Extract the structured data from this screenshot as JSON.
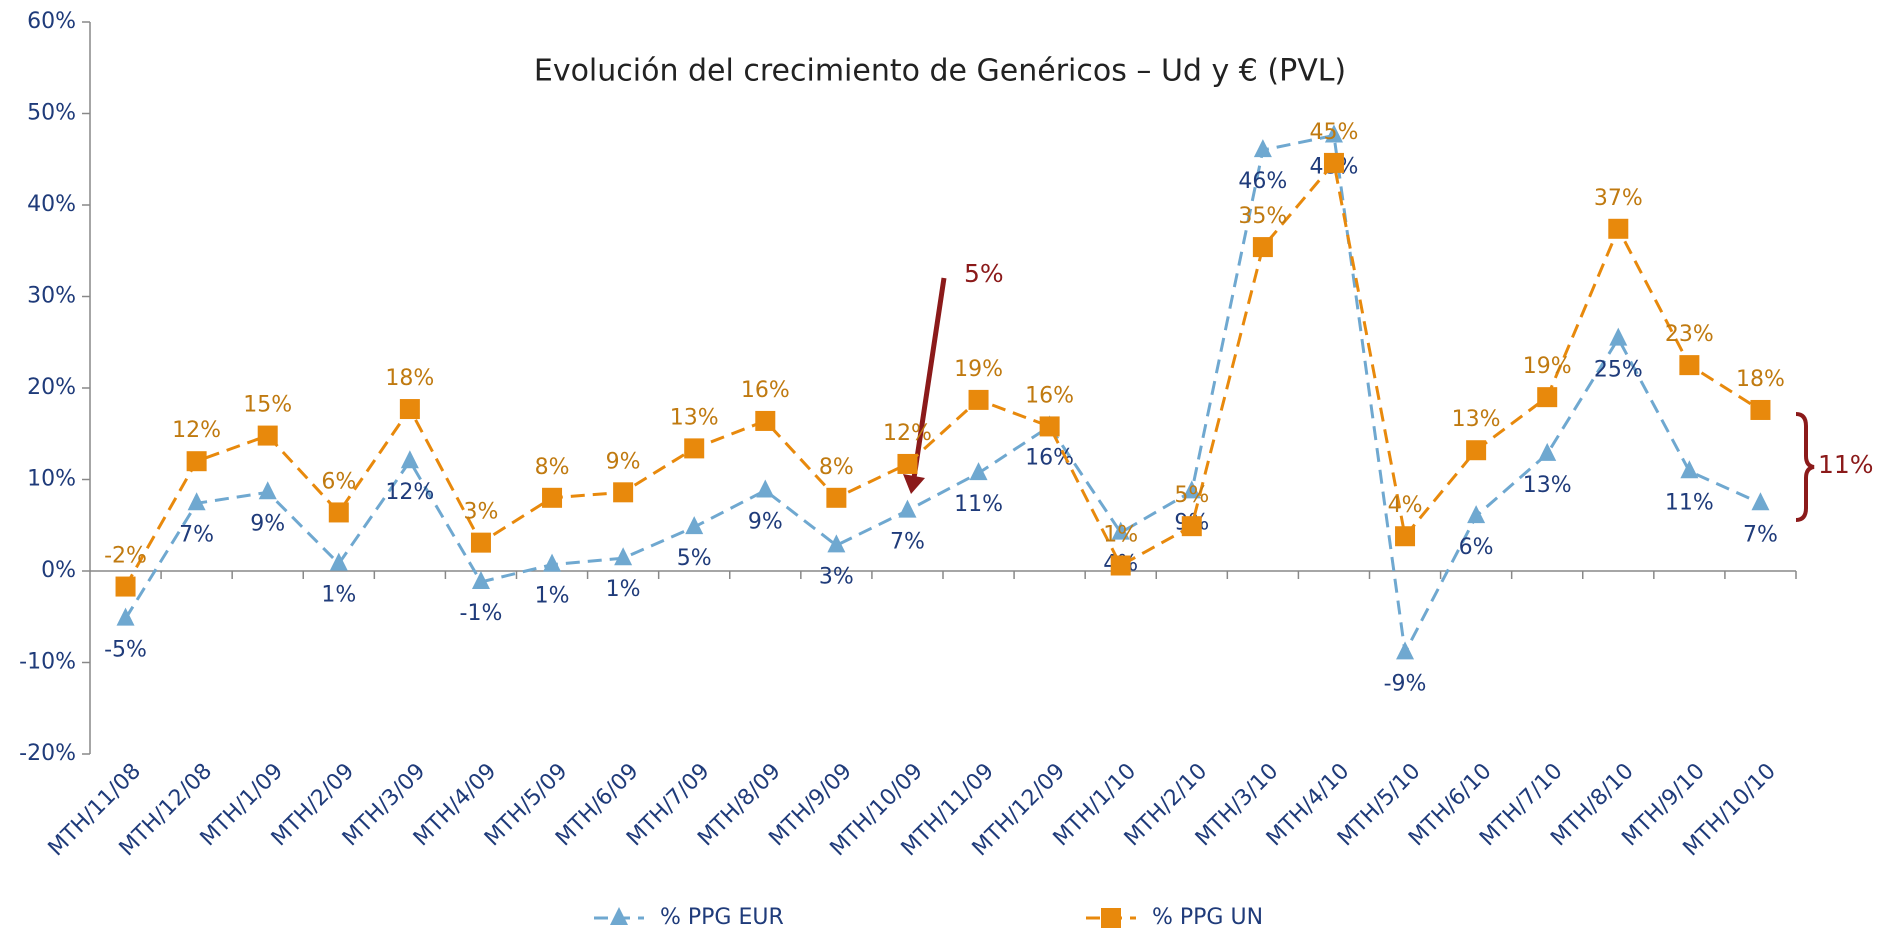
{
  "chart_data": {
    "type": "line",
    "title": "Evolución del crecimiento de Genéricos – Ud y € (PVL)",
    "categories": [
      "MTH/11/08",
      "MTH/12/08",
      "MTH/1/09",
      "MTH/2/09",
      "MTH/3/09",
      "MTH/4/09",
      "MTH/5/09",
      "MTH/6/09",
      "MTH/7/09",
      "MTH/8/09",
      "MTH/9/09",
      "MTH/10/09",
      "MTH/11/09",
      "MTH/12/09",
      "MTH/1/10",
      "MTH/2/10",
      "MTH/3/10",
      "MTH/4/10",
      "MTH/5/10",
      "MTH/6/10",
      "MTH/7/10",
      "MTH/8/10",
      "MTH/9/10",
      "MTH/10/10"
    ],
    "series": [
      {
        "name": "% PPG EUR",
        "color": "#6fa8d0",
        "marker": "triangle",
        "label_color": "#1f3b7a",
        "values": [
          -5.2,
          7.4,
          8.6,
          0.8,
          12,
          -1.2,
          0.7,
          1.4,
          4.8,
          8.8,
          2.8,
          6.6,
          10.7,
          15.8,
          4.2,
          8.7,
          46,
          47.6,
          -8.9,
          6,
          12.8,
          25.4,
          10.9,
          7.4
        ],
        "value_labels": [
          "-5%",
          "7%",
          "9%",
          "1%",
          "12%",
          "-1%",
          "1%",
          "1%",
          "5%",
          "9%",
          "3%",
          "7%",
          "11%",
          "16%",
          "4%",
          "9%",
          "46%",
          "48%",
          "-9%",
          "6%",
          "13%",
          "25%",
          "11%",
          "7%"
        ]
      },
      {
        "name": "% PPG UN",
        "color": "#e8890c",
        "marker": "square",
        "label_color": "#c07a10",
        "values": [
          -1.7,
          12,
          14.8,
          6.4,
          17.7,
          3.1,
          8,
          8.6,
          13.4,
          16.4,
          8,
          11.7,
          18.7,
          15.8,
          0.6,
          4.9,
          35.4,
          44.6,
          3.8,
          13.2,
          19,
          37.4,
          22.5,
          17.6
        ],
        "value_labels": [
          "-2%",
          "12%",
          "15%",
          "6%",
          "18%",
          "3%",
          "8%",
          "9%",
          "13%",
          "16%",
          "8%",
          "12%",
          "19%",
          "16%",
          "1%",
          "5%",
          "35%",
          "45%",
          "4%",
          "13%",
          "19%",
          "37%",
          "23%",
          "18%"
        ]
      }
    ],
    "ylim": [
      -20,
      60
    ],
    "yticks": [
      {
        "value": -20,
        "label": "-20%"
      },
      {
        "value": -10,
        "label": "-10%"
      },
      {
        "value": 0,
        "label": "0%"
      },
      {
        "value": 10,
        "label": "10%"
      },
      {
        "value": 20,
        "label": "20%"
      },
      {
        "value": 30,
        "label": "30%"
      },
      {
        "value": 40,
        "label": "40%"
      },
      {
        "value": 50,
        "label": "50%"
      },
      {
        "value": 60,
        "label": "60%"
      }
    ],
    "grid": false,
    "legend": "bottom",
    "annotations": [
      {
        "text": "5%"
      },
      {
        "text": "11%"
      }
    ]
  }
}
